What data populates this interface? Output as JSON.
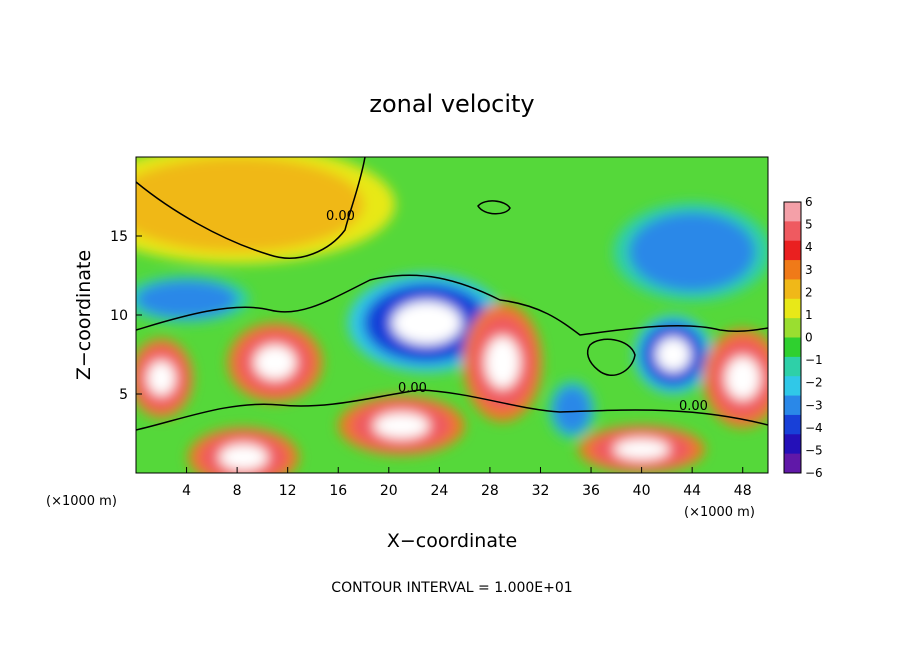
{
  "chart_data": {
    "type": "heatmap",
    "title": "zonal velocity",
    "xlabel": "X−coordinate",
    "ylabel": "Z−coordinate",
    "x_unit_left": "(×1000 m)",
    "x_unit_right": "(×1000 m)",
    "xlim": [
      0,
      50
    ],
    "ylim": [
      0,
      20
    ],
    "x_ticks": [
      4,
      8,
      12,
      16,
      20,
      24,
      28,
      32,
      36,
      40,
      44,
      48
    ],
    "y_ticks": [
      5,
      10,
      15
    ],
    "colorbar": {
      "ticks": [
        6,
        5,
        4,
        3,
        2,
        1,
        0,
        -1,
        -2,
        -3,
        -4,
        -5,
        -6
      ],
      "tick_labels": [
        "6",
        "5",
        "4",
        "3",
        "2",
        "1",
        "0",
        "−1",
        "−2",
        "−3",
        "−4",
        "−5",
        "−6"
      ],
      "colors": [
        "#f4a0a8",
        "#ef5a60",
        "#ea2020",
        "#f07a18",
        "#f0b818",
        "#e8e818",
        "#9ade30",
        "#2fd02f",
        "#2ed0a8",
        "#30c8e8",
        "#2a88e8",
        "#1840d8",
        "#2410b8",
        "#6018a8"
      ]
    },
    "contour_label": "0.00",
    "contour_interval_text": "CONTOUR INTERVAL = 1.000E+01",
    "features": [
      {
        "kind": "background",
        "value": 0.3
      },
      {
        "kind": "region",
        "x": 8,
        "z": 17,
        "rx": 10,
        "rz": 3,
        "value": 1.5
      },
      {
        "kind": "region",
        "x": 44,
        "z": 14,
        "rx": 5,
        "rz": 2.5,
        "value": -4
      },
      {
        "kind": "region",
        "x": 4,
        "z": 11,
        "rx": 4,
        "rz": 1.2,
        "value": -4.5
      },
      {
        "kind": "region",
        "x": 23,
        "z": 9.5,
        "rx": 5,
        "rz": 2.5,
        "value": -5
      },
      {
        "kind": "region",
        "x": 11,
        "z": 7,
        "rx": 3,
        "rz": 2,
        "value": 5
      },
      {
        "kind": "region",
        "x": 29,
        "z": 7,
        "rx": 2.5,
        "rz": 3,
        "value": 5
      },
      {
        "kind": "region",
        "x": 21,
        "z": 3,
        "rx": 4,
        "rz": 1.5,
        "value": 5
      },
      {
        "kind": "region",
        "x": 42.5,
        "z": 7.5,
        "rx": 2.5,
        "rz": 2,
        "value": -5.5
      },
      {
        "kind": "region",
        "x": 48,
        "z": 6,
        "rx": 2.5,
        "rz": 2.5,
        "value": 5
      },
      {
        "kind": "region",
        "x": 2,
        "z": 6,
        "rx": 2,
        "rz": 2,
        "value": 5
      },
      {
        "kind": "region",
        "x": 34.5,
        "z": 4,
        "rx": 1.5,
        "rz": 1.5,
        "value": -4
      },
      {
        "kind": "region",
        "x": 8.5,
        "z": 1,
        "rx": 3.5,
        "rz": 1.5,
        "value": 5
      },
      {
        "kind": "region",
        "x": 40,
        "z": 1.5,
        "rx": 4,
        "rz": 1.2,
        "value": 5
      }
    ]
  }
}
